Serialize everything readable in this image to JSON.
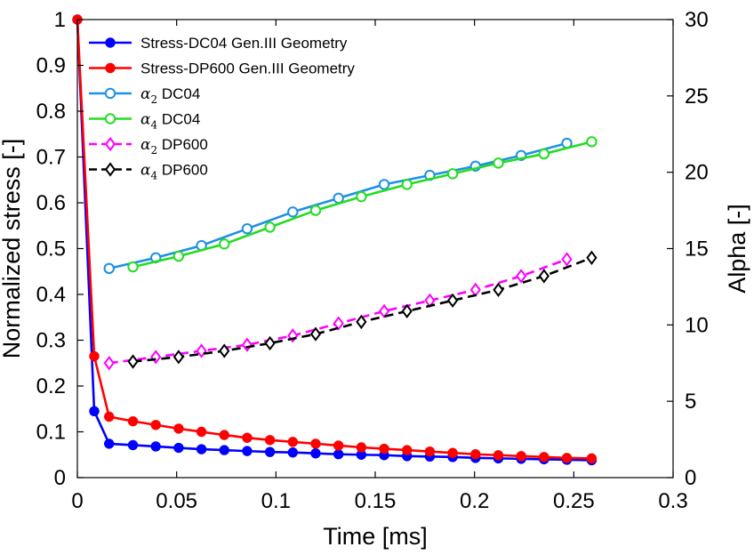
{
  "chart_data": {
    "type": "line",
    "title": "",
    "xlabel": "Time [ms]",
    "ylabel_left": "Normalized stress [-]",
    "ylabel_right": "Alpha [-]",
    "xlim": [
      0,
      0.3
    ],
    "ylim_left": [
      0,
      1
    ],
    "ylim_right": [
      0,
      30
    ],
    "x_ticks": [
      "0",
      "0.05",
      "0.1",
      "0.15",
      "0.2",
      "0.25",
      "0.3"
    ],
    "y_left_ticks": [
      "0",
      "0.1",
      "0.2",
      "0.3",
      "0.4",
      "0.5",
      "0.6",
      "0.7",
      "0.8",
      "0.9",
      "1"
    ],
    "y_right_ticks": [
      "0",
      "5",
      "10",
      "15",
      "20",
      "25",
      "30"
    ],
    "grid": false,
    "legend_position": "top-left",
    "series": [
      {
        "legend": {
          "text": "Stress-DC04 Gen.III Geometry",
          "symbol": "",
          "sub": ""
        },
        "axis": "left",
        "color": "#0000ff",
        "marker": "filled-circle",
        "dashed": false,
        "x": [
          0,
          0.0085,
          0.016,
          0.028,
          0.0395,
          0.051,
          0.0625,
          0.074,
          0.0855,
          0.097,
          0.1085,
          0.12,
          0.1315,
          0.143,
          0.1545,
          0.166,
          0.1775,
          0.189,
          0.2005,
          0.212,
          0.2235,
          0.235,
          0.2465,
          0.259
        ],
        "y": [
          1.0,
          0.145,
          0.074,
          0.071,
          0.068,
          0.065,
          0.062,
          0.06,
          0.058,
          0.056,
          0.055,
          0.053,
          0.051,
          0.05,
          0.049,
          0.047,
          0.046,
          0.045,
          0.043,
          0.042,
          0.041,
          0.04,
          0.039,
          0.038
        ]
      },
      {
        "legend": {
          "text": "Stress-DP600 Gen.III Geometry",
          "symbol": "",
          "sub": ""
        },
        "axis": "left",
        "color": "#ff0000",
        "marker": "filled-circle",
        "dashed": false,
        "x": [
          0,
          0.0085,
          0.016,
          0.028,
          0.0395,
          0.051,
          0.0625,
          0.074,
          0.0855,
          0.097,
          0.1085,
          0.12,
          0.1315,
          0.143,
          0.1545,
          0.166,
          0.1775,
          0.189,
          0.2005,
          0.212,
          0.2235,
          0.235,
          0.2465,
          0.259
        ],
        "y": [
          1.0,
          0.265,
          0.133,
          0.123,
          0.115,
          0.107,
          0.1,
          0.093,
          0.087,
          0.082,
          0.078,
          0.074,
          0.07,
          0.066,
          0.063,
          0.06,
          0.057,
          0.054,
          0.051,
          0.049,
          0.047,
          0.045,
          0.043,
          0.042
        ]
      },
      {
        "legend": {
          "text": "DC04",
          "symbol": "α",
          "sub": "2"
        },
        "axis": "right",
        "color": "#1e90e6",
        "marker": "open-circle",
        "dashed": false,
        "x": [
          0.016,
          0.0395,
          0.0625,
          0.0855,
          0.1085,
          0.1315,
          0.1545,
          0.1775,
          0.2005,
          0.2235,
          0.2465
        ],
        "y": [
          13.7,
          14.4,
          15.2,
          16.3,
          17.4,
          18.3,
          19.2,
          19.8,
          20.4,
          21.1,
          21.9
        ]
      },
      {
        "legend": {
          "text": "DC04",
          "symbol": "α",
          "sub": "4"
        },
        "axis": "right",
        "color": "#22dd22",
        "marker": "open-circle",
        "dashed": false,
        "x": [
          0.028,
          0.051,
          0.074,
          0.097,
          0.12,
          0.143,
          0.166,
          0.189,
          0.212,
          0.235,
          0.259
        ],
        "y": [
          13.8,
          14.5,
          15.3,
          16.4,
          17.5,
          18.4,
          19.2,
          19.9,
          20.6,
          21.2,
          22.0
        ]
      },
      {
        "legend": {
          "text": "DP600",
          "symbol": "α",
          "sub": "2"
        },
        "axis": "right",
        "color": "#ff00ff",
        "marker": "open-diamond",
        "dashed": true,
        "x": [
          0.016,
          0.0395,
          0.0625,
          0.0855,
          0.1085,
          0.1315,
          0.1545,
          0.1775,
          0.2005,
          0.2235,
          0.2465
        ],
        "y": [
          7.5,
          7.9,
          8.3,
          8.7,
          9.3,
          10.1,
          10.9,
          11.6,
          12.3,
          13.2,
          14.3
        ]
      },
      {
        "legend": {
          "text": "DP600",
          "symbol": "α",
          "sub": "4"
        },
        "axis": "right",
        "color": "#000000",
        "marker": "open-diamond",
        "dashed": true,
        "x": [
          0.028,
          0.051,
          0.074,
          0.097,
          0.12,
          0.143,
          0.166,
          0.189,
          0.212,
          0.235,
          0.259
        ],
        "y": [
          7.6,
          7.9,
          8.3,
          8.8,
          9.4,
          10.2,
          10.9,
          11.6,
          12.3,
          13.2,
          14.4
        ]
      }
    ]
  }
}
